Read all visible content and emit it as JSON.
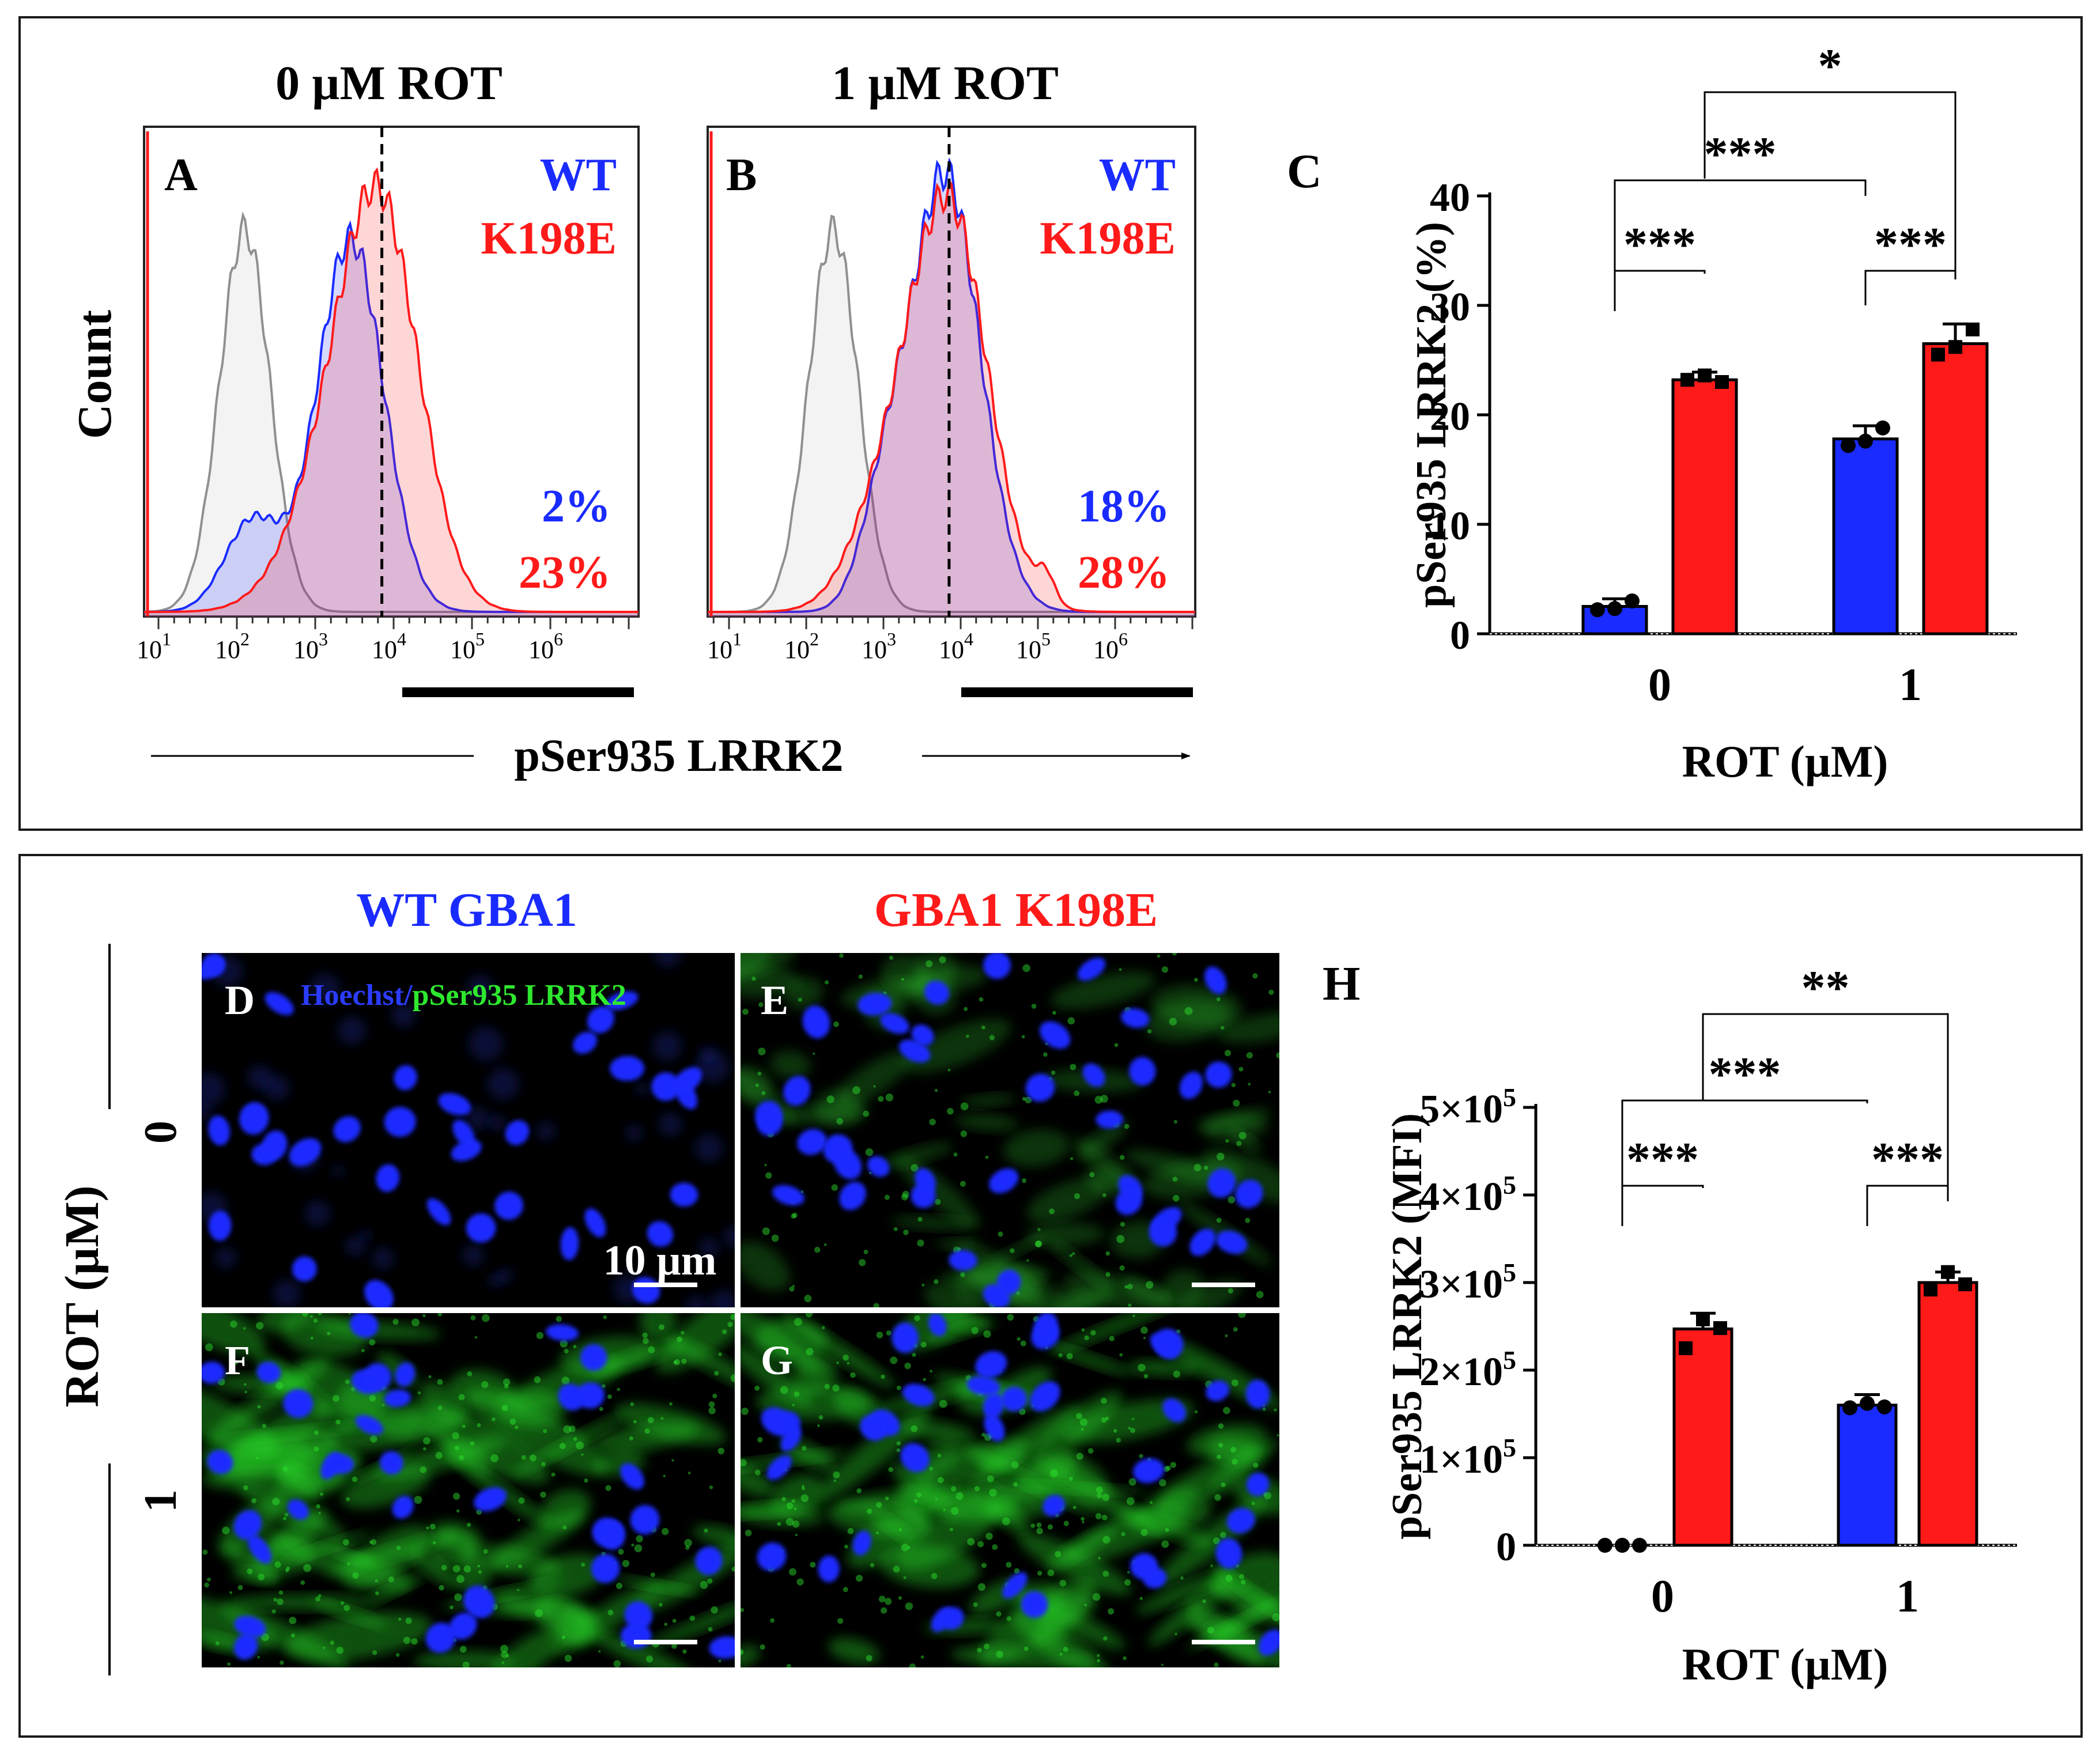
{
  "colors": {
    "wt": "#1a2bff",
    "mutant": "#ff1a1a",
    "control": "#909090",
    "nuclei": "#1a2bff",
    "stain": "#2ee82e",
    "frame": "#1a1a1a"
  },
  "panel_top": {
    "histograms": [
      {
        "letter": "A",
        "title": "0 µM ROT",
        "legend_wt": "WT",
        "legend_mut": "K198E",
        "pct_wt": "2%",
        "pct_mut": "23%",
        "gate_position_decade": 3.85,
        "control_peak_decade": 2.1,
        "wt_peak_decade": 3.45,
        "mut_peak_decade": 3.85
      },
      {
        "letter": "B",
        "title": "1 µM ROT",
        "legend_wt": "WT",
        "legend_mut": "K198E",
        "pct_wt": "18%",
        "pct_mut": "28%",
        "gate_position_decade": 3.85,
        "control_peak_decade": 2.35,
        "wt_peak_decade": 3.8,
        "mut_peak_decade": 3.85
      }
    ],
    "histogram_y_label": "Count",
    "histogram_x_label": "pSer935 LRRK2",
    "tick_labels": [
      {
        "base": "10",
        "exp": "1"
      },
      {
        "base": "10",
        "exp": "2"
      },
      {
        "base": "10",
        "exp": "3"
      },
      {
        "base": "10",
        "exp": "4"
      },
      {
        "base": "10",
        "exp": "5"
      },
      {
        "base": "10",
        "exp": "6"
      }
    ]
  },
  "panel_bottom": {
    "column_wt": "WT GBA1",
    "column_mut": "GBA1 K198E",
    "row_axis_label": "ROT (µM)",
    "row_labels": [
      "0",
      "1"
    ],
    "stain_label_a": "Hoechst/",
    "stain_label_b": "pSer935 LRRK2",
    "scale_label": "10 µm",
    "image_letters": [
      "D",
      "E",
      "F",
      "G"
    ]
  },
  "chart_data": [
    {
      "panel": "C",
      "type": "bar",
      "xlabel": "ROT (µM)",
      "ylabel": "pSer935 LRRK2  (%)",
      "categories": [
        "0",
        "1"
      ],
      "ylim": [
        0,
        40
      ],
      "yticks": [
        0,
        10,
        20,
        30,
        40
      ],
      "ytick_labels": [
        "0",
        "10",
        "20",
        "30",
        "40"
      ],
      "series": [
        {
          "name": "WT",
          "values": [
            2.5,
            17.8
          ],
          "errors": [
            0.7,
            1.2
          ],
          "points": [
            [
              2.2,
              2.3,
              3.0
            ],
            [
              17.2,
              17.6,
              18.8
            ]
          ]
        },
        {
          "name": "K198E",
          "values": [
            23.2,
            26.5
          ],
          "errors": [
            0.7,
            1.8
          ],
          "points": [
            [
              23.2,
              23.6,
              23.0
            ],
            [
              25.5,
              26.2,
              27.8
            ]
          ]
        }
      ],
      "significance": [
        {
          "label": "***",
          "from": [
            0,
            0
          ],
          "to": [
            0,
            1
          ]
        },
        {
          "label": "***",
          "from": [
            1,
            0
          ],
          "to": [
            1,
            1
          ]
        },
        {
          "label": "***",
          "from": [
            0,
            0
          ],
          "to": [
            1,
            0
          ]
        },
        {
          "label": "*",
          "from": [
            0,
            1
          ],
          "to": [
            1,
            1
          ]
        }
      ]
    },
    {
      "panel": "H",
      "type": "bar",
      "xlabel": "ROT (µM)",
      "ylabel": "pSer935 LRRK2 (MFI)",
      "categories": [
        "0",
        "1"
      ],
      "ylim": [
        0,
        500000
      ],
      "yticks": [
        0,
        100000,
        200000,
        300000,
        400000,
        500000
      ],
      "ytick_labels": [
        {
          "mant": "0",
          "exp": ""
        },
        {
          "mant": "1×10",
          "exp": "5"
        },
        {
          "mant": "2×10",
          "exp": "5"
        },
        {
          "mant": "3×10",
          "exp": "5"
        },
        {
          "mant": "4×10",
          "exp": "5"
        },
        {
          "mant": "5×10",
          "exp": "5"
        }
      ],
      "series": [
        {
          "name": "WT",
          "values": [
            0,
            160000
          ],
          "errors": [
            0,
            12000
          ],
          "points": [
            [
              0,
              0,
              0
            ],
            [
              157000,
              162000,
              158000
            ]
          ]
        },
        {
          "name": "K198E",
          "values": [
            247000,
            300000
          ],
          "errors": [
            18000,
            12000
          ],
          "points": [
            [
              225000,
              258000,
              248000
            ],
            [
              292000,
              312000,
              298000
            ]
          ]
        }
      ],
      "significance": [
        {
          "label": "***",
          "from": [
            0,
            0
          ],
          "to": [
            0,
            1
          ]
        },
        {
          "label": "***",
          "from": [
            1,
            0
          ],
          "to": [
            1,
            1
          ]
        },
        {
          "label": "***",
          "from": [
            0,
            0
          ],
          "to": [
            1,
            0
          ]
        },
        {
          "label": "**",
          "from": [
            0,
            1
          ],
          "to": [
            1,
            1
          ]
        }
      ]
    }
  ]
}
